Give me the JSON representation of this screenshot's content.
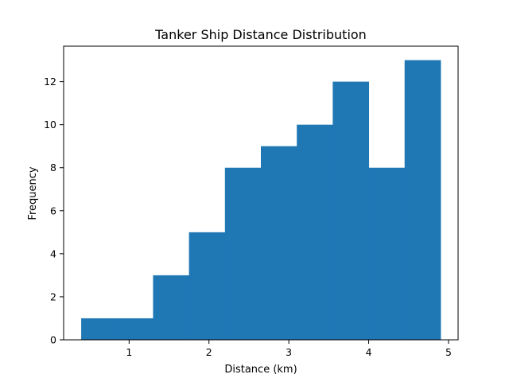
{
  "chart_data": {
    "type": "bar",
    "subtype": "histogram",
    "title": "Tanker Ship Distance Distribution",
    "xlabel": "Distance (km)",
    "ylabel": "Frequency",
    "bins": [
      {
        "x0": 0.4,
        "x1": 0.85,
        "count": 1
      },
      {
        "x0": 0.85,
        "x1": 1.3,
        "count": 1
      },
      {
        "x0": 1.3,
        "x1": 1.75,
        "count": 3
      },
      {
        "x0": 1.75,
        "x1": 2.2,
        "count": 5
      },
      {
        "x0": 2.2,
        "x1": 2.65,
        "count": 8
      },
      {
        "x0": 2.65,
        "x1": 3.1,
        "count": 9
      },
      {
        "x0": 3.1,
        "x1": 3.55,
        "count": 10
      },
      {
        "x0": 3.55,
        "x1": 4.0,
        "count": 12
      },
      {
        "x0": 4.0,
        "x1": 4.45,
        "count": 8
      },
      {
        "x0": 4.45,
        "x1": 4.9,
        "count": 13
      }
    ],
    "xlim": [
      0.18,
      5.12
    ],
    "ylim": [
      0,
      13.65
    ],
    "xticks": [
      1,
      2,
      3,
      4,
      5
    ],
    "yticks": [
      0,
      2,
      4,
      6,
      8,
      10,
      12
    ],
    "bar_color": "#1f77b4",
    "grid": false,
    "legend": "none"
  }
}
